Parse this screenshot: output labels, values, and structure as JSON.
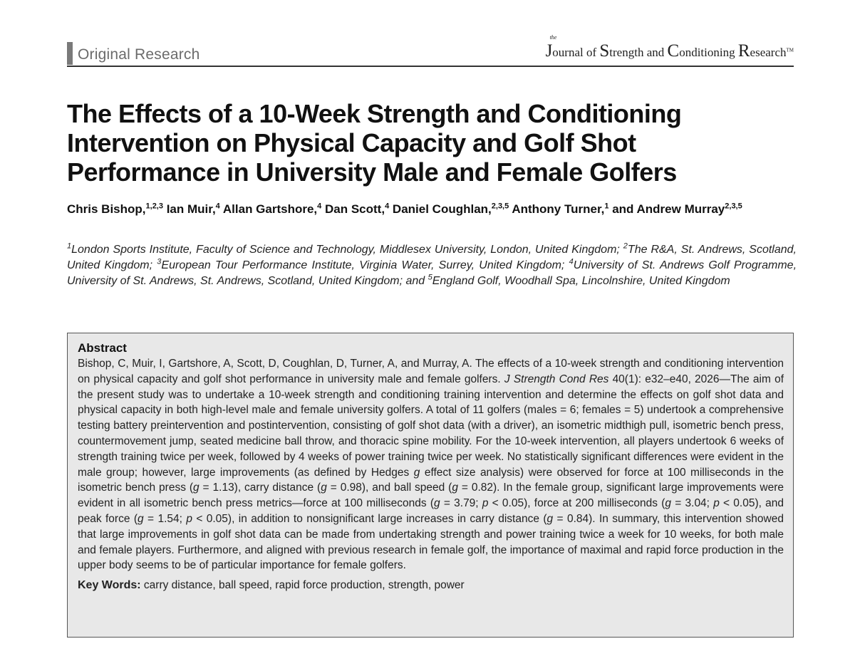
{
  "header": {
    "section_label": "Original Research",
    "journal": {
      "the": "the",
      "parts": [
        {
          "text": "J",
          "cls": "j-big"
        },
        {
          "text": "ournal of ",
          "cls": "j-small"
        },
        {
          "text": "S",
          "cls": "j-big"
        },
        {
          "text": "trength and ",
          "cls": "j-small"
        },
        {
          "text": "C",
          "cls": "j-big"
        },
        {
          "text": "onditioning ",
          "cls": "j-small"
        },
        {
          "text": "R",
          "cls": "j-big"
        },
        {
          "text": "esearch",
          "cls": "j-small"
        }
      ],
      "tm": "TM"
    }
  },
  "title_lines": [
    "The Effects of a 10-Week Strength and Conditioning",
    "Intervention on Physical Capacity and Golf Shot",
    "Performance in University Male and Female Golfers"
  ],
  "authors": [
    {
      "t": "Chris Bishop,"
    },
    {
      "s": "1,2,3"
    },
    {
      "t": " Ian Muir,"
    },
    {
      "s": "4"
    },
    {
      "t": " Allan Gartshore,"
    },
    {
      "s": "4"
    },
    {
      "t": " Dan Scott,"
    },
    {
      "s": "4"
    },
    {
      "t": " Daniel Coughlan,"
    },
    {
      "s": "2,3,5"
    },
    {
      "t": " Anthony Turner,"
    },
    {
      "s": "1"
    },
    {
      "t": " and Andrew Murray"
    },
    {
      "s": "2,3,5"
    }
  ],
  "affiliations": [
    {
      "s": "1"
    },
    {
      "t": "London Sports Institute, Faculty of Science and Technology, Middlesex University, London, United Kingdom; "
    },
    {
      "s": "2"
    },
    {
      "t": "The R&A, St. Andrews, Scotland, United Kingdom; "
    },
    {
      "s": "3"
    },
    {
      "t": "European Tour Performance Institute, Virginia Water, Surrey, United Kingdom; "
    },
    {
      "s": "4"
    },
    {
      "t": "University of St. Andrews Golf Programme, University of St. Andrews, St. Andrews, Scotland, United Kingdom; and "
    },
    {
      "s": "5"
    },
    {
      "t": "England Golf, Woodhall Spa, Lincolnshire, United Kingdom"
    }
  ],
  "abstract": {
    "heading": "Abstract",
    "segments": [
      {
        "t": "Bishop, C, Muir, I, Gartshore, A, Scott, D, Coughlan, D, Turner, A, and Murray, A. The effects of a 10-week strength and conditioning intervention on physical capacity and golf shot performance in university male and female golfers. "
      },
      {
        "i": "J Strength Cond Res"
      },
      {
        "t": " 40(1): e32–e40, 2026—The aim of the present study was to undertake a 10-week strength and conditioning training intervention and determine the effects on golf shot data and physical capacity in both high-level male and female university golfers. A total of 11 golfers (males = 6; females = 5) undertook a comprehensive testing battery preintervention and postintervention, consisting of golf shot data (with a driver), an isometric midthigh pull, isometric bench press, countermovement jump, seated medicine ball throw, and thoracic spine mobility. For the 10-week intervention, all players undertook 6 weeks of strength training twice per week, followed by 4 weeks of power training twice per week. No statistically significant differences were evident in the male group; however, large improvements (as defined by Hedges "
      },
      {
        "i": "g"
      },
      {
        "t": " effect size analysis) were observed for force at 100 milliseconds in the isometric bench press ("
      },
      {
        "i": "g"
      },
      {
        "t": " = 1.13), carry distance ("
      },
      {
        "i": "g"
      },
      {
        "t": " = 0.98), and ball speed ("
      },
      {
        "i": "g"
      },
      {
        "t": " = 0.82). In the female group, significant large improvements were evident in all isometric bench press metrics—force at 100 milliseconds ("
      },
      {
        "i": "g"
      },
      {
        "t": " = 3.79; "
      },
      {
        "i": "p"
      },
      {
        "t": " < 0.05), force at 200 milliseconds ("
      },
      {
        "i": "g"
      },
      {
        "t": " = 3.04; "
      },
      {
        "i": "p"
      },
      {
        "t": " < 0.05), and peak force ("
      },
      {
        "i": "g"
      },
      {
        "t": " = 1.54; "
      },
      {
        "i": "p"
      },
      {
        "t": " < 0.05), in addition to nonsignificant large increases in carry distance ("
      },
      {
        "i": "g"
      },
      {
        "t": " = 0.84). In summary, this intervention showed that large improvements in golf shot data can be made from undertaking strength and power training twice a week for 10 weeks, for both male and female players. Furthermore, and aligned with previous research in female golf, the importance of maximal and rapid force production in the upper body seems to be of particular importance for female golfers."
      }
    ],
    "keywords_label": "Key Words:",
    "keywords": "carry distance, ball speed, rapid force production, strength, power"
  }
}
